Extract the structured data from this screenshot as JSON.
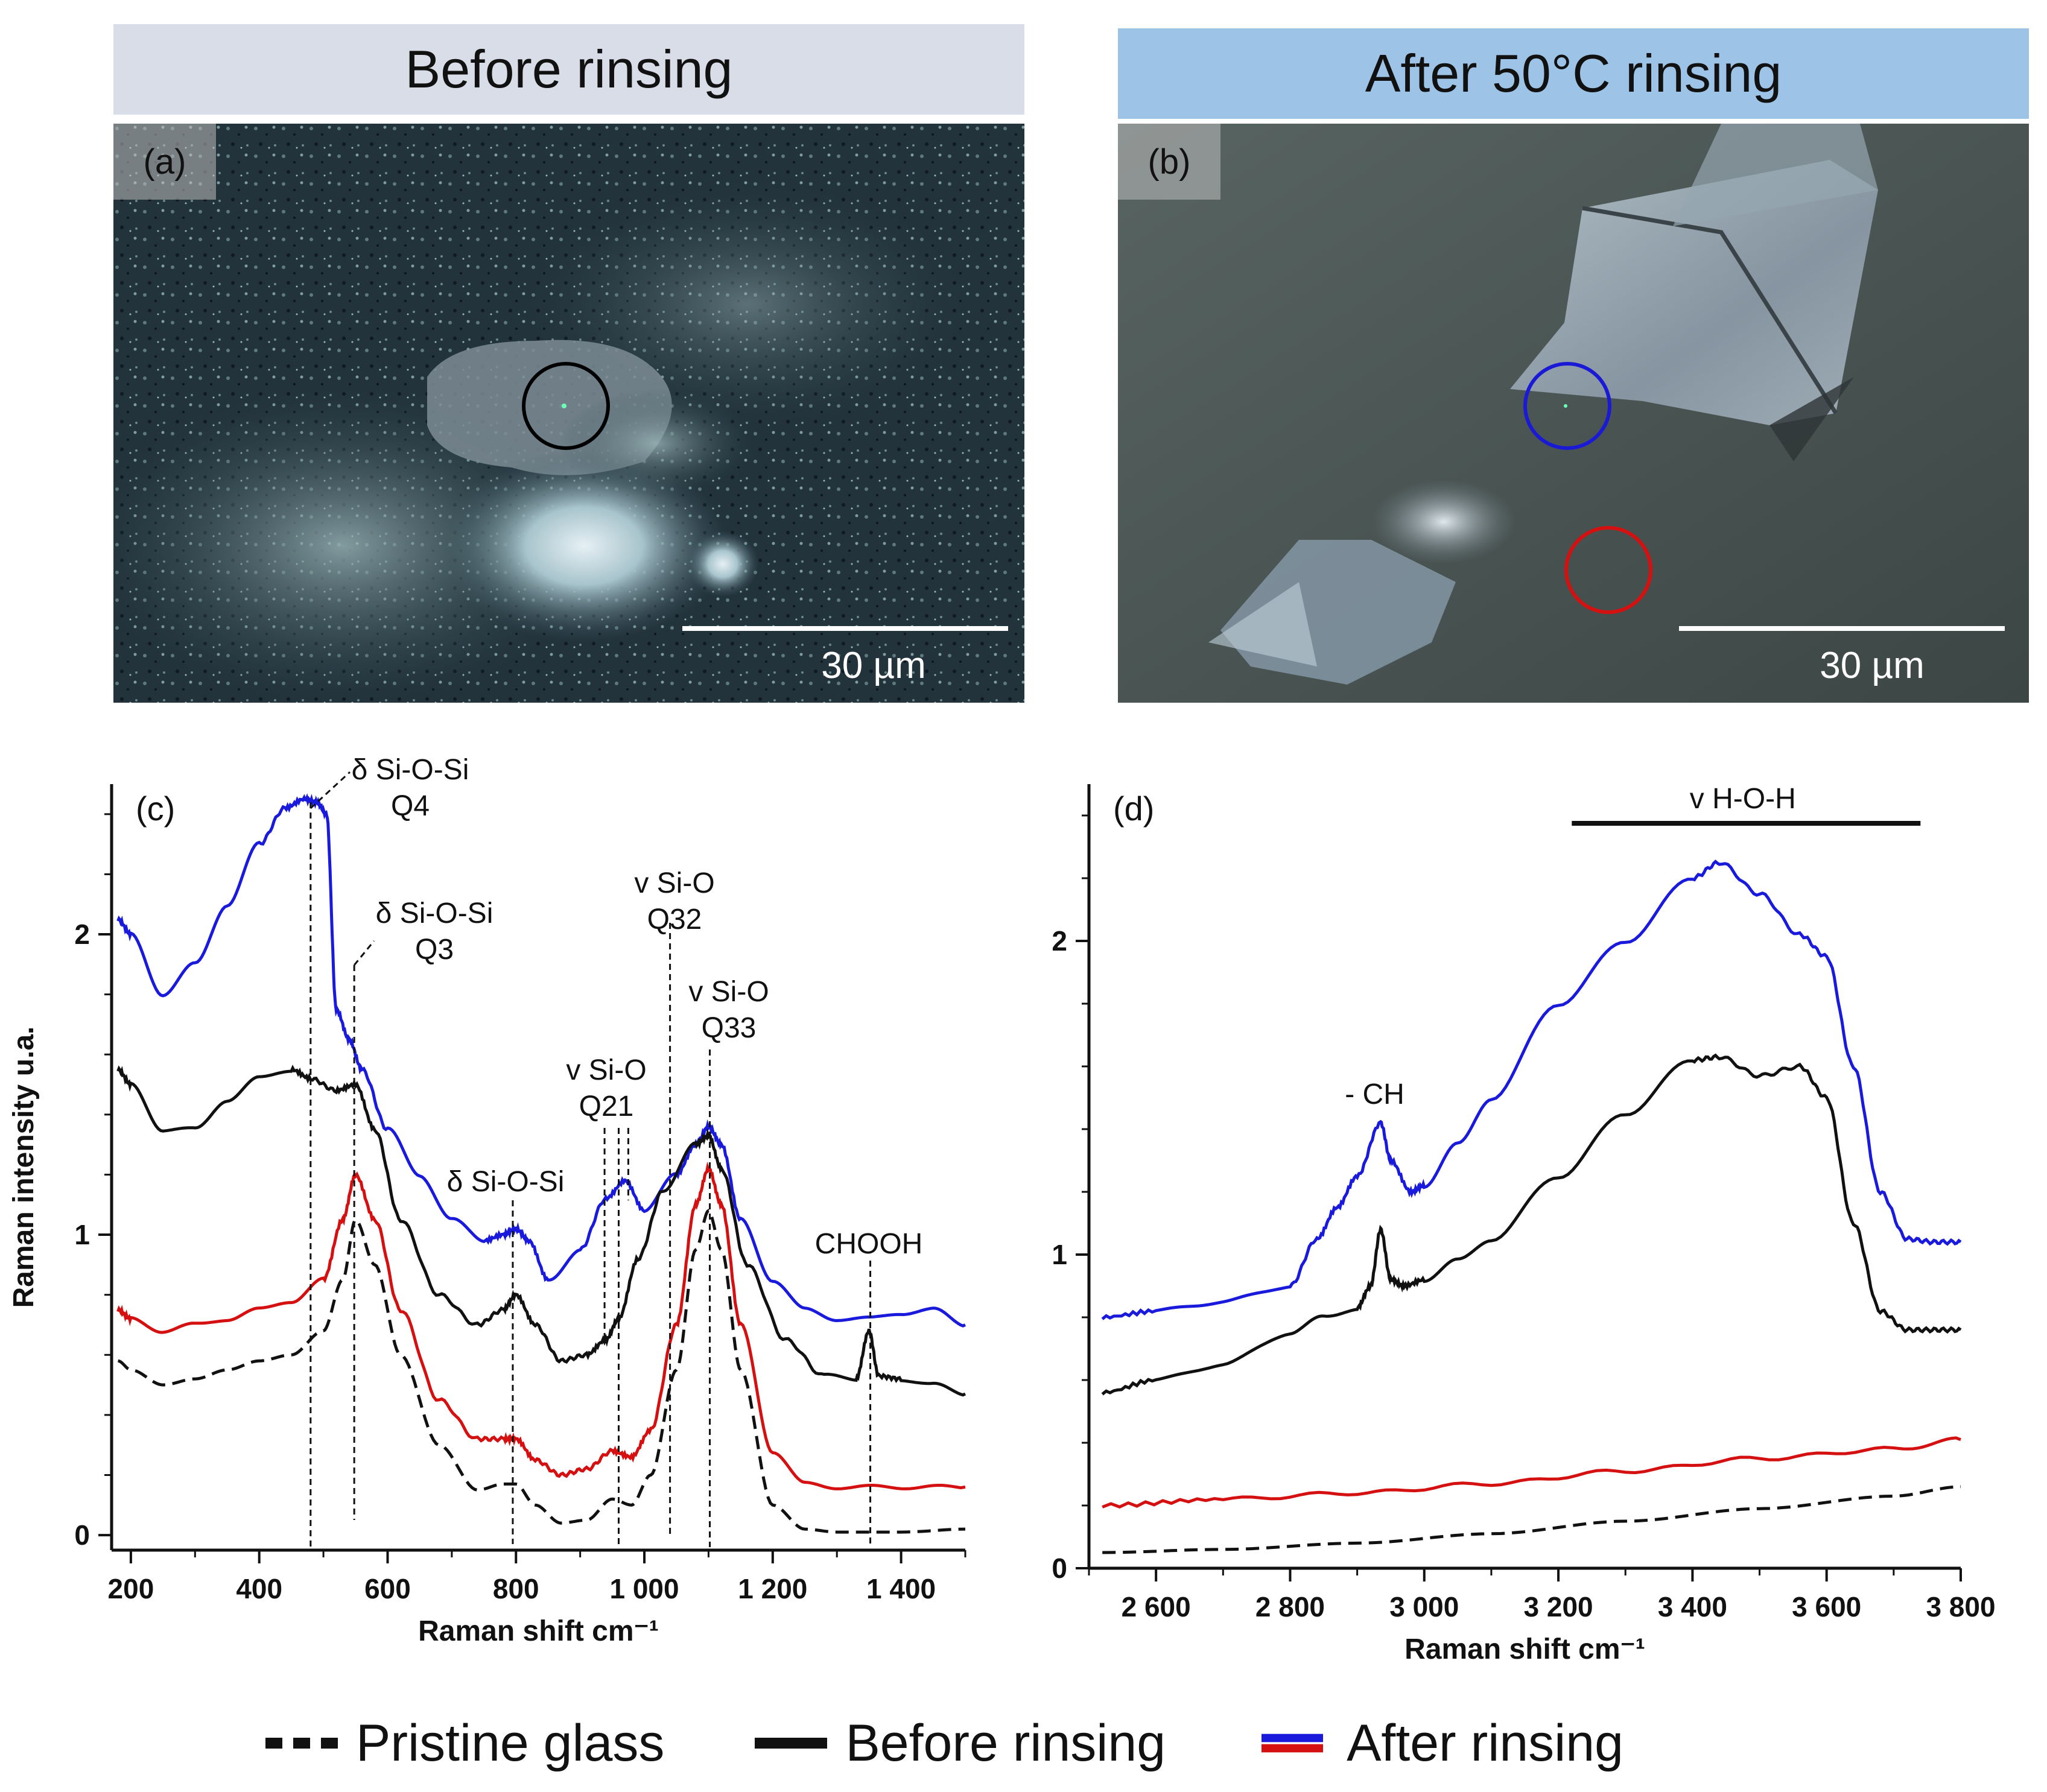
{
  "panels": {
    "a": {
      "header": "Before rinsing",
      "tag": "(a)",
      "scale": "30 µm"
    },
    "b": {
      "header": "After 50°C rinsing",
      "tag": "(b)",
      "scale": "30 µm"
    }
  },
  "colors": {
    "blue": "#1a1adc",
    "red": "#d41010",
    "black": "#111111",
    "header_a": "#d8dde8",
    "header_b": "#9dc3e6"
  },
  "legend": {
    "pristine": "Pristine glass",
    "before": "Before rinsing",
    "after": "After rinsing"
  },
  "chart_data": [
    {
      "type": "line",
      "panel_label": "(c)",
      "xlabel": "Raman shift cm⁻¹",
      "ylabel": "Raman intensity u.a.",
      "xlim": [
        170,
        1500
      ],
      "ylim": [
        -0.05,
        2.5
      ],
      "xticks": [
        200,
        400,
        600,
        800,
        1000,
        1200,
        1400
      ],
      "xtick_labels": [
        "200",
        "400",
        "600",
        "800",
        "1 000",
        "1 200",
        "1 400"
      ],
      "yticks": [
        0,
        1,
        2
      ],
      "ytick_labels": [
        "0",
        "1",
        "2"
      ],
      "annotations": [
        {
          "lines": [
            "δ Si-O-Si",
            "Q4"
          ],
          "x": 480
        },
        {
          "lines": [
            "δ Si-O-Si",
            "Q3"
          ],
          "x": 548
        },
        {
          "lines": [
            "δ Si-O-Si"
          ],
          "x": 795
        },
        {
          "lines": [
            "v Si-O",
            "Q21"
          ],
          "x": 960
        },
        {
          "lines": [
            "v Si-O",
            "Q32"
          ],
          "x": 1040
        },
        {
          "lines": [
            "v Si-O",
            "Q33"
          ],
          "x": 1102
        },
        {
          "lines": [
            "CHOOH"
          ],
          "x": 1352
        }
      ],
      "series": [
        {
          "name": "After rinsing (blue)",
          "color": "#1a1adc",
          "style": "solid",
          "x": [
            180,
            200,
            250,
            300,
            350,
            400,
            440,
            470,
            490,
            505,
            520,
            540,
            560,
            600,
            650,
            700,
            750,
            780,
            800,
            820,
            850,
            900,
            940,
            970,
            1000,
            1050,
            1080,
            1100,
            1120,
            1150,
            1200,
            1250,
            1300,
            1350,
            1400,
            1450,
            1500
          ],
          "values": [
            2.05,
            2.0,
            1.8,
            1.9,
            2.1,
            2.3,
            2.42,
            2.45,
            2.44,
            2.4,
            1.75,
            1.65,
            1.55,
            1.35,
            1.2,
            1.05,
            0.98,
            1.0,
            1.02,
            0.98,
            0.85,
            0.95,
            1.12,
            1.18,
            1.08,
            1.2,
            1.3,
            1.36,
            1.3,
            1.05,
            0.85,
            0.75,
            0.72,
            0.72,
            0.74,
            0.75,
            0.7
          ]
        },
        {
          "name": "Before rinsing (black)",
          "color": "#111111",
          "style": "solid",
          "x": [
            180,
            200,
            250,
            300,
            350,
            400,
            450,
            480,
            520,
            550,
            580,
            620,
            680,
            740,
            780,
            800,
            830,
            870,
            910,
            940,
            960,
            990,
            1030,
            1080,
            1100,
            1120,
            1160,
            1220,
            1280,
            1330,
            1350,
            1365,
            1400,
            1450,
            1500
          ],
          "values": [
            1.55,
            1.5,
            1.35,
            1.35,
            1.45,
            1.52,
            1.55,
            1.52,
            1.48,
            1.5,
            1.35,
            1.05,
            0.8,
            0.7,
            0.75,
            0.8,
            0.7,
            0.58,
            0.6,
            0.65,
            0.72,
            0.92,
            1.15,
            1.3,
            1.33,
            1.22,
            0.9,
            0.65,
            0.53,
            0.52,
            0.68,
            0.53,
            0.52,
            0.5,
            0.47
          ]
        },
        {
          "name": "After rinsing (red)",
          "color": "#d41010",
          "style": "solid",
          "x": [
            180,
            200,
            250,
            300,
            350,
            400,
            450,
            500,
            530,
            550,
            580,
            620,
            680,
            740,
            780,
            800,
            830,
            870,
            910,
            950,
            980,
            1010,
            1050,
            1080,
            1100,
            1120,
            1150,
            1200,
            1250,
            1300,
            1400,
            1500
          ],
          "values": [
            0.75,
            0.72,
            0.68,
            0.7,
            0.72,
            0.75,
            0.78,
            0.85,
            1.05,
            1.2,
            1.05,
            0.75,
            0.45,
            0.32,
            0.32,
            0.32,
            0.25,
            0.2,
            0.22,
            0.28,
            0.26,
            0.35,
            0.7,
            1.1,
            1.22,
            1.1,
            0.7,
            0.28,
            0.17,
            0.16,
            0.16,
            0.16
          ]
        },
        {
          "name": "Pristine glass",
          "color": "#111111",
          "style": "dashed",
          "x": [
            180,
            200,
            250,
            300,
            350,
            400,
            450,
            500,
            530,
            550,
            580,
            620,
            680,
            740,
            780,
            800,
            830,
            870,
            910,
            950,
            980,
            1010,
            1050,
            1080,
            1100,
            1120,
            1150,
            1200,
            1250,
            1300,
            1400,
            1500
          ],
          "values": [
            0.58,
            0.55,
            0.5,
            0.52,
            0.55,
            0.58,
            0.6,
            0.68,
            0.85,
            1.05,
            0.9,
            0.6,
            0.3,
            0.15,
            0.17,
            0.17,
            0.1,
            0.04,
            0.05,
            0.12,
            0.1,
            0.2,
            0.55,
            0.95,
            1.08,
            0.95,
            0.55,
            0.1,
            0.02,
            0.01,
            0.01,
            0.02
          ]
        }
      ]
    },
    {
      "type": "line",
      "panel_label": "(d)",
      "xlabel": "Raman shift cm⁻¹",
      "ylabel": "Raman intensity u.a.",
      "xlim": [
        2500,
        3800
      ],
      "ylim": [
        0,
        2.5
      ],
      "xticks": [
        2600,
        2800,
        3000,
        3200,
        3400,
        3600,
        3800
      ],
      "xtick_labels": [
        "2 600",
        "2 800",
        "3 000",
        "3 200",
        "3 400",
        "3 600",
        "3 800"
      ],
      "yticks": [
        0,
        1,
        2
      ],
      "ytick_labels": [
        "0",
        "1",
        "2"
      ],
      "annotations": [
        {
          "lines": [
            "- CH"
          ],
          "x": 2935
        },
        {
          "lines": [
            "v H-O-H"
          ],
          "x": 3475,
          "bar": [
            3220,
            3740
          ]
        }
      ],
      "series": [
        {
          "name": "After rinsing (blue)",
          "color": "#1a1adc",
          "style": "solid",
          "x": [
            2520,
            2600,
            2700,
            2800,
            2840,
            2870,
            2900,
            2935,
            2950,
            2980,
            3000,
            3050,
            3100,
            3200,
            3300,
            3400,
            3440,
            3500,
            3560,
            3600,
            3640,
            3680,
            3720,
            3760,
            3800
          ],
          "values": [
            0.8,
            0.82,
            0.85,
            0.9,
            1.05,
            1.15,
            1.25,
            1.42,
            1.3,
            1.2,
            1.22,
            1.35,
            1.5,
            1.8,
            2.0,
            2.2,
            2.25,
            2.15,
            2.02,
            1.95,
            1.6,
            1.2,
            1.05,
            1.04,
            1.04
          ]
        },
        {
          "name": "Before rinsing (black)",
          "color": "#111111",
          "style": "solid",
          "x": [
            2520,
            2600,
            2700,
            2800,
            2850,
            2900,
            2920,
            2935,
            2950,
            2970,
            3000,
            3050,
            3100,
            3200,
            3300,
            3400,
            3440,
            3500,
            3560,
            3600,
            3640,
            3680,
            3720,
            3760,
            3800
          ],
          "values": [
            0.56,
            0.6,
            0.65,
            0.75,
            0.8,
            0.83,
            0.9,
            1.08,
            0.92,
            0.9,
            0.92,
            0.98,
            1.05,
            1.25,
            1.45,
            1.62,
            1.63,
            1.57,
            1.6,
            1.5,
            1.1,
            0.82,
            0.76,
            0.76,
            0.76
          ]
        },
        {
          "name": "After rinsing (red)",
          "color": "#d41010",
          "style": "solid",
          "x": [
            2520,
            2700,
            2900,
            3100,
            3300,
            3500,
            3700,
            3800
          ],
          "values": [
            0.2,
            0.22,
            0.24,
            0.27,
            0.31,
            0.35,
            0.38,
            0.41
          ]
        },
        {
          "name": "Pristine glass",
          "color": "#111111",
          "style": "dashed",
          "x": [
            2520,
            2700,
            2900,
            3100,
            3300,
            3500,
            3700,
            3800
          ],
          "values": [
            0.05,
            0.06,
            0.08,
            0.11,
            0.15,
            0.19,
            0.23,
            0.26
          ]
        }
      ]
    }
  ]
}
